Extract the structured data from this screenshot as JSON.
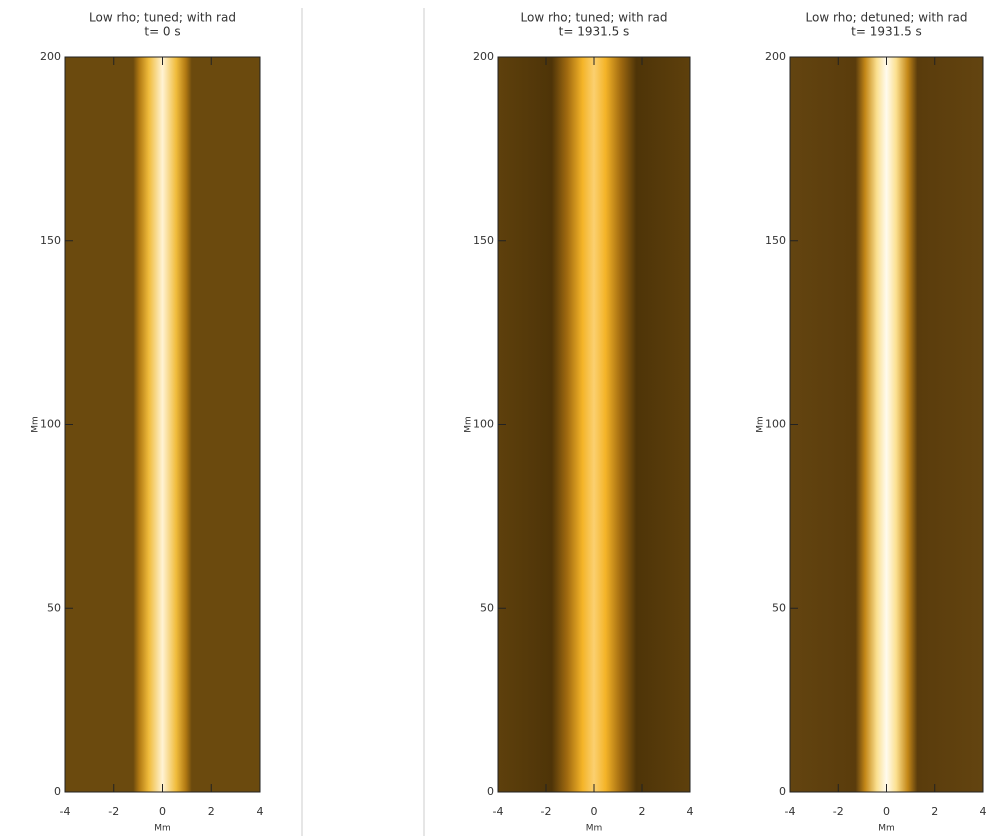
{
  "chart_data": [
    {
      "type": "image",
      "title": "Low rho; tuned; with rad",
      "subtitle": "t= 0 s",
      "xlabel": "Mm",
      "ylabel": "Mm",
      "xlim": [
        -4,
        4
      ],
      "ylim": [
        0,
        200
      ],
      "xticks": [
        -4,
        -2,
        0,
        2,
        4
      ],
      "yticks": [
        0,
        50,
        100,
        150,
        200
      ]
    },
    {
      "type": "image",
      "title": "Low rho; tuned; with rad",
      "subtitle": "t= 1931.5 s",
      "xlabel": "Mm",
      "ylabel": "Mm",
      "xlim": [
        -4,
        4
      ],
      "ylim": [
        0,
        200
      ],
      "xticks": [
        -4,
        -2,
        0,
        2,
        4
      ],
      "yticks": [
        0,
        50,
        100,
        150,
        200
      ]
    },
    {
      "type": "image",
      "title": "Low rho; detuned; with rad",
      "subtitle": "t= 1931.5 s",
      "xlabel": "Mm",
      "ylabel": "Mm",
      "xlim": [
        -4,
        4
      ],
      "ylim": [
        0,
        200
      ],
      "xticks": [
        -4,
        -2,
        0,
        2,
        4
      ],
      "yticks": [
        0,
        50,
        100,
        150,
        200
      ]
    }
  ]
}
